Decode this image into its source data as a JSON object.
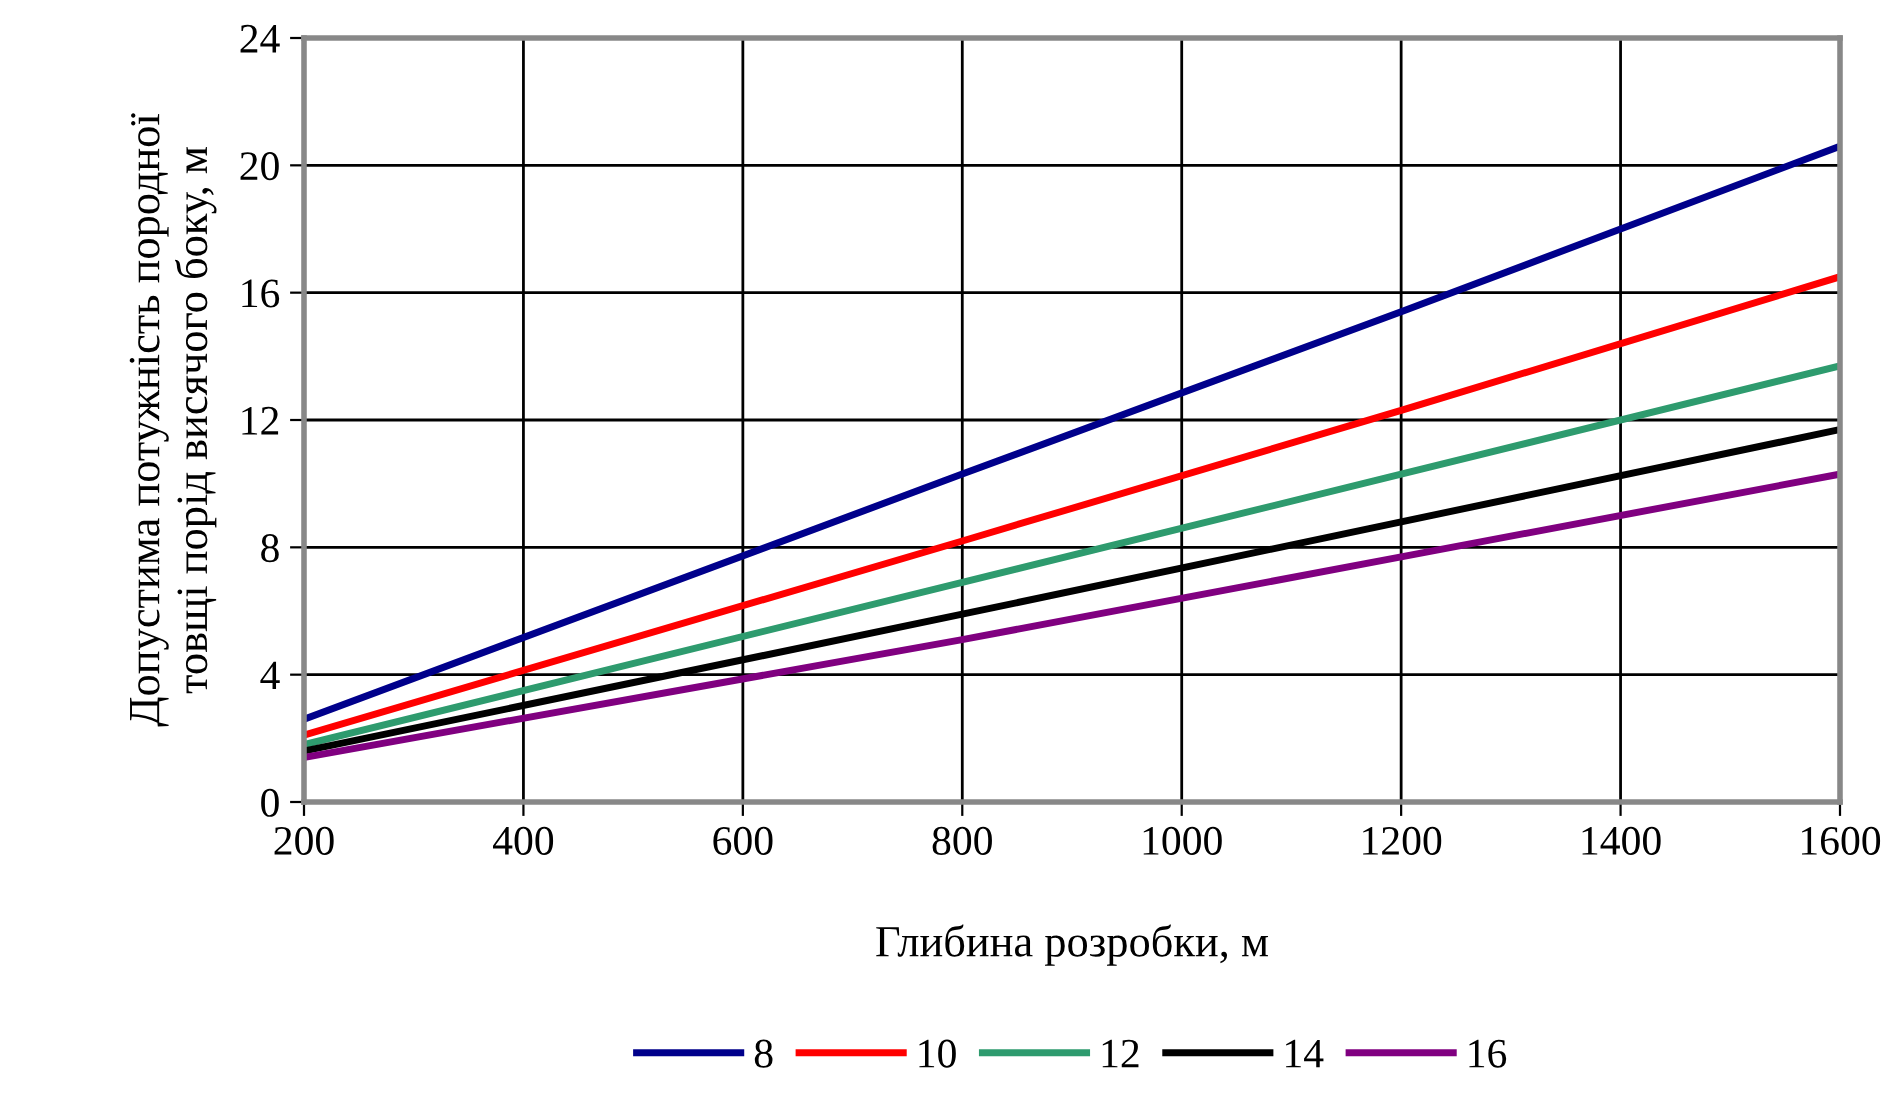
{
  "chart_data": {
    "type": "line",
    "xlabel": "Глибина розробки, м",
    "ylabel": "Допустима потужність породної\nтовщі порід висячого боку, м",
    "x": [
      200,
      800,
      1200,
      1600
    ],
    "series": [
      {
        "name": "8",
        "color": "#00008b",
        "values": [
          2.6,
          10.3,
          15.4,
          20.6
        ]
      },
      {
        "name": "10",
        "color": "#ff0000",
        "values": [
          2.1,
          8.2,
          12.3,
          16.5
        ]
      },
      {
        "name": "12",
        "color": "#2e9b6e",
        "values": [
          1.8,
          6.9,
          10.3,
          13.7
        ]
      },
      {
        "name": "14",
        "color": "#000000",
        "values": [
          1.6,
          5.9,
          8.8,
          11.7
        ]
      },
      {
        "name": "16",
        "color": "#800080",
        "values": [
          1.4,
          5.1,
          7.7,
          10.3
        ]
      }
    ],
    "xlim": [
      200,
      1600
    ],
    "xticks": [
      200,
      400,
      600,
      800,
      1000,
      1200,
      1400,
      1600
    ],
    "ylim": [
      0,
      24
    ],
    "yticks": [
      0,
      4,
      8,
      12,
      16,
      20,
      24
    ],
    "grid": true,
    "legend": "bottom",
    "marker": "none",
    "line_style": "solid"
  }
}
